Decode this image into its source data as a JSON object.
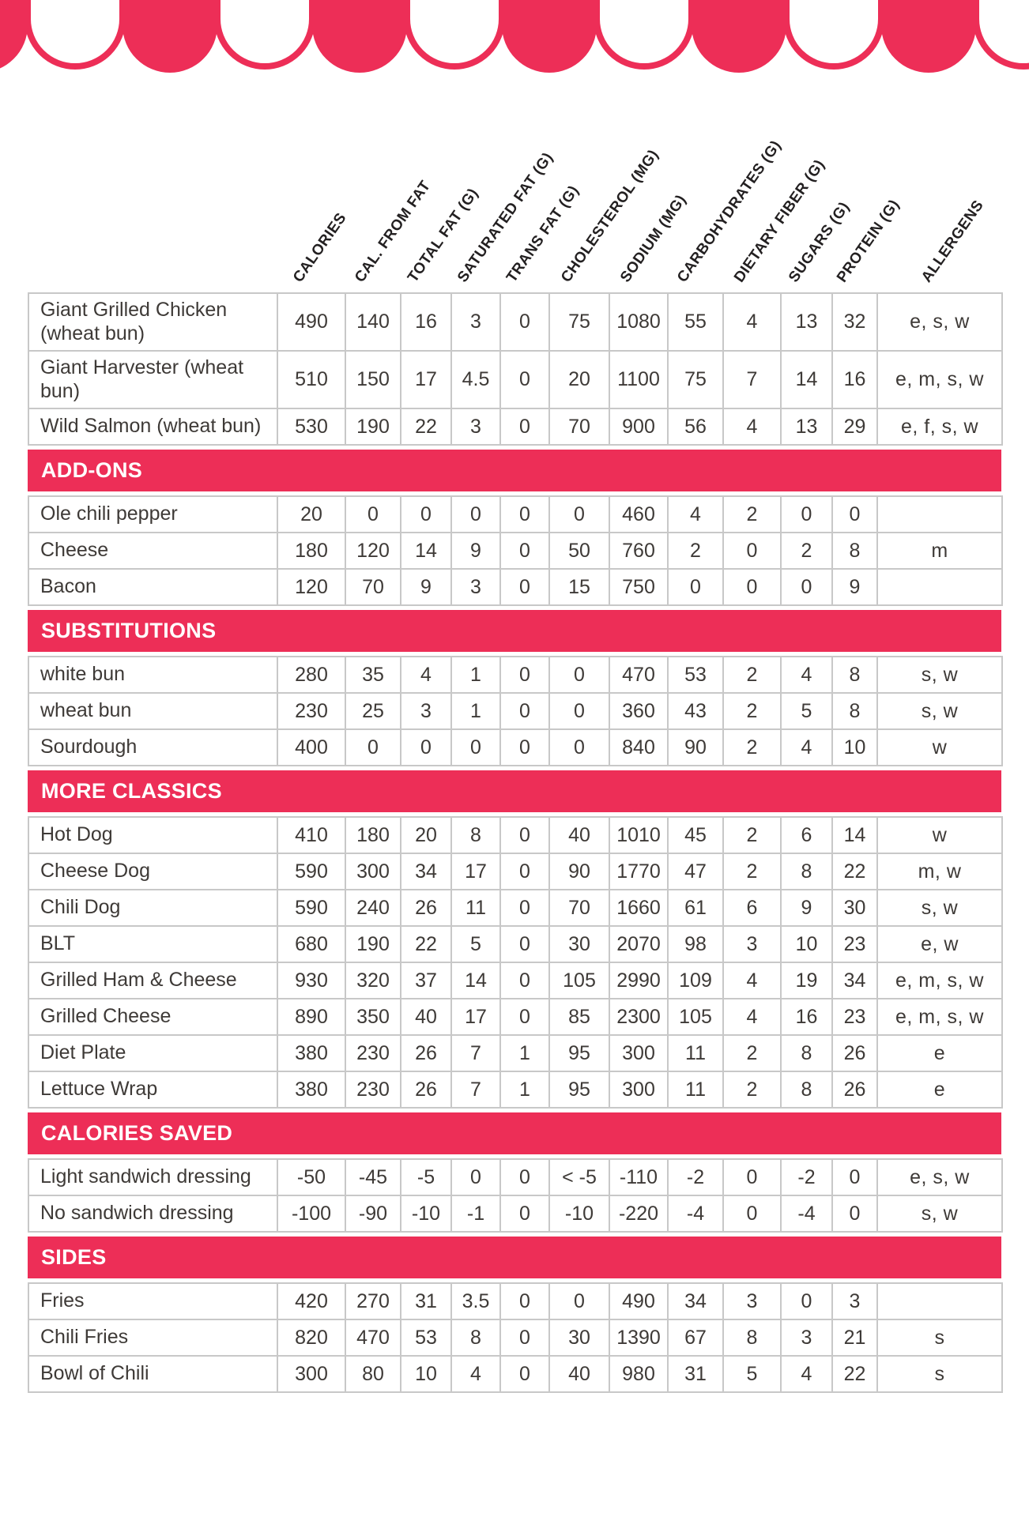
{
  "colors": {
    "accent": "#ED2E57",
    "cream": "#FAF0D7",
    "border": "#C8C8C8",
    "ink": "#3E3A37",
    "bar_text": "#FFFFFF"
  },
  "awning": {
    "color": "#ED2E57"
  },
  "columns": [
    "CALORIES",
    "CAL. FROM FAT",
    "TOTAL FAT (G)",
    "SATURATED FAT (G)",
    "TRANS FAT (G)",
    "CHOLESTEROL (MG)",
    "SODIUM (MG)",
    "CARBOHYDRATES (G)",
    "DIETARY FIBER (G)",
    "SUGARS (G)",
    "PROTEIN (G)",
    "ALLERGENS"
  ],
  "table": {
    "sections": [
      {
        "title": null,
        "rows": [
          {
            "name": "Giant Grilled Chicken (wheat bun)",
            "values": [
              "490",
              "140",
              "16",
              "3",
              "0",
              "75",
              "1080",
              "55",
              "4",
              "13",
              "32"
            ],
            "allergens": "e, s, w"
          },
          {
            "name": "Giant Harvester (wheat bun)",
            "values": [
              "510",
              "150",
              "17",
              "4.5",
              "0",
              "20",
              "1100",
              "75",
              "7",
              "14",
              "16"
            ],
            "allergens": "e, m, s, w"
          },
          {
            "name": "Wild Salmon (wheat bun)",
            "values": [
              "530",
              "190",
              "22",
              "3",
              "0",
              "70",
              "900",
              "56",
              "4",
              "13",
              "29"
            ],
            "allergens": "e, f, s, w"
          }
        ]
      },
      {
        "title": "ADD-ONS",
        "rows": [
          {
            "name": "Ole chili pepper",
            "values": [
              "20",
              "0",
              "0",
              "0",
              "0",
              "0",
              "460",
              "4",
              "2",
              "0",
              "0"
            ],
            "allergens": ""
          },
          {
            "name": "Cheese",
            "values": [
              "180",
              "120",
              "14",
              "9",
              "0",
              "50",
              "760",
              "2",
              "0",
              "2",
              "8"
            ],
            "allergens": "m"
          },
          {
            "name": "Bacon",
            "values": [
              "120",
              "70",
              "9",
              "3",
              "0",
              "15",
              "750",
              "0",
              "0",
              "0",
              "9"
            ],
            "allergens": ""
          }
        ]
      },
      {
        "title": "SUBSTITUTIONS",
        "rows": [
          {
            "name": "white bun",
            "values": [
              "280",
              "35",
              "4",
              "1",
              "0",
              "0",
              "470",
              "53",
              "2",
              "4",
              "8"
            ],
            "allergens": "s, w"
          },
          {
            "name": "wheat bun",
            "values": [
              "230",
              "25",
              "3",
              "1",
              "0",
              "0",
              "360",
              "43",
              "2",
              "5",
              "8"
            ],
            "allergens": "s, w"
          },
          {
            "name": "Sourdough",
            "values": [
              "400",
              "0",
              "0",
              "0",
              "0",
              "0",
              "840",
              "90",
              "2",
              "4",
              "10"
            ],
            "allergens": "w"
          }
        ]
      },
      {
        "title": "MORE CLASSICS",
        "rows": [
          {
            "name": "Hot Dog",
            "values": [
              "410",
              "180",
              "20",
              "8",
              "0",
              "40",
              "1010",
              "45",
              "2",
              "6",
              "14"
            ],
            "allergens": "w"
          },
          {
            "name": "Cheese Dog",
            "values": [
              "590",
              "300",
              "34",
              "17",
              "0",
              "90",
              "1770",
              "47",
              "2",
              "8",
              "22"
            ],
            "allergens": "m, w"
          },
          {
            "name": "Chili Dog",
            "values": [
              "590",
              "240",
              "26",
              "11",
              "0",
              "70",
              "1660",
              "61",
              "6",
              "9",
              "30"
            ],
            "allergens": "s, w"
          },
          {
            "name": "BLT",
            "values": [
              "680",
              "190",
              "22",
              "5",
              "0",
              "30",
              "2070",
              "98",
              "3",
              "10",
              "23"
            ],
            "allergens": "e, w"
          },
          {
            "name": "Grilled Ham & Cheese",
            "values": [
              "930",
              "320",
              "37",
              "14",
              "0",
              "105",
              "2990",
              "109",
              "4",
              "19",
              "34"
            ],
            "allergens": "e, m, s, w"
          },
          {
            "name": "Grilled Cheese",
            "values": [
              "890",
              "350",
              "40",
              "17",
              "0",
              "85",
              "2300",
              "105",
              "4",
              "16",
              "23"
            ],
            "allergens": "e, m, s, w"
          },
          {
            "name": "Diet Plate",
            "values": [
              "380",
              "230",
              "26",
              "7",
              "1",
              "95",
              "300",
              "11",
              "2",
              "8",
              "26"
            ],
            "allergens": "e"
          },
          {
            "name": "Lettuce Wrap",
            "values": [
              "380",
              "230",
              "26",
              "7",
              "1",
              "95",
              "300",
              "11",
              "2",
              "8",
              "26"
            ],
            "allergens": "e"
          }
        ]
      },
      {
        "title": "CALORIES SAVED",
        "rows": [
          {
            "name": "Light sandwich dressing",
            "values": [
              "-50",
              "-45",
              "-5",
              "0",
              "0",
              "< -5",
              "-110",
              "-2",
              "0",
              "-2",
              "0"
            ],
            "allergens": "e, s, w"
          },
          {
            "name": "No sandwich dressing",
            "values": [
              "-100",
              "-90",
              "-10",
              "-1",
              "0",
              "-10",
              "-220",
              "-4",
              "0",
              "-4",
              "0"
            ],
            "allergens": "s, w"
          }
        ]
      },
      {
        "title": "SIDES",
        "rows": [
          {
            "name": "Fries",
            "values": [
              "420",
              "270",
              "31",
              "3.5",
              "0",
              "0",
              "490",
              "34",
              "3",
              "0",
              "3"
            ],
            "allergens": ""
          },
          {
            "name": "Chili Fries",
            "values": [
              "820",
              "470",
              "53",
              "8",
              "0",
              "30",
              "1390",
              "67",
              "8",
              "3",
              "21"
            ],
            "allergens": "s"
          },
          {
            "name": "Bowl of Chili",
            "values": [
              "300",
              "80",
              "10",
              "4",
              "0",
              "40",
              "980",
              "31",
              "5",
              "4",
              "22"
            ],
            "allergens": "s"
          }
        ]
      }
    ]
  }
}
